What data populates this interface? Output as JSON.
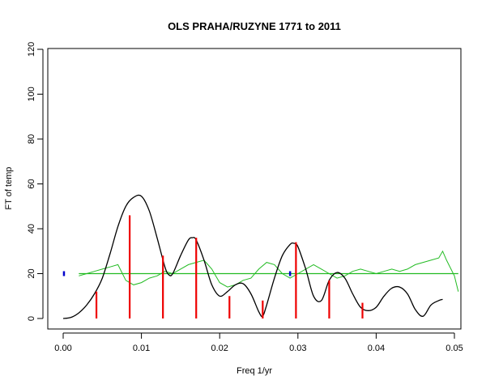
{
  "chart_data": {
    "type": "line",
    "title": "OLS PRAHA/RUZYNE 1771 to 2011",
    "xlabel": "Freq 1/yr",
    "ylabel": "FT of temp",
    "xlim": [
      0,
      0.05
    ],
    "ylim": [
      0,
      120
    ],
    "x_ticks": [
      {
        "value": 0.0,
        "label": "0.00"
      },
      {
        "value": 0.01,
        "label": "0.01"
      },
      {
        "value": 0.02,
        "label": "0.02"
      },
      {
        "value": 0.03,
        "label": "0.03"
      },
      {
        "value": 0.04,
        "label": "0.04"
      },
      {
        "value": 0.05,
        "label": "0.05"
      }
    ],
    "y_ticks": [
      {
        "value": 0,
        "label": "0"
      },
      {
        "value": 20,
        "label": "20"
      },
      {
        "value": 40,
        "label": "40"
      },
      {
        "value": 60,
        "label": "60"
      },
      {
        "value": 80,
        "label": "80"
      },
      {
        "value": 100,
        "label": "100"
      },
      {
        "value": 120,
        "label": "120"
      }
    ],
    "grid": false,
    "colors": {
      "spectrum": "#000000",
      "noise": "#22bb22",
      "threshold": "#22bb22",
      "peaks": "#ee0000",
      "markers": "#0000cc"
    },
    "spectrum": {
      "x": [
        0.0,
        0.001,
        0.002,
        0.003,
        0.004,
        0.005,
        0.006,
        0.007,
        0.008,
        0.009,
        0.01,
        0.011,
        0.012,
        0.013,
        0.0135,
        0.014,
        0.015,
        0.016,
        0.0165,
        0.017,
        0.018,
        0.019,
        0.02,
        0.021,
        0.022,
        0.023,
        0.024,
        0.025,
        0.0255,
        0.026,
        0.027,
        0.028,
        0.029,
        0.0295,
        0.03,
        0.031,
        0.032,
        0.033,
        0.034,
        0.035,
        0.036,
        0.037,
        0.038,
        0.039,
        0.04,
        0.041,
        0.042,
        0.043,
        0.044,
        0.045,
        0.046,
        0.047,
        0.048,
        0.0485
      ],
      "y": [
        0,
        0.5,
        2.5,
        6,
        11,
        18,
        29,
        41,
        50,
        54,
        54.5,
        48,
        36,
        23,
        19.5,
        20,
        28,
        35,
        36,
        35,
        26,
        15,
        10,
        12,
        15,
        15.5,
        11,
        3,
        1,
        6,
        18,
        28,
        33,
        33.5,
        32,
        22,
        10,
        8,
        17,
        20.5,
        18,
        11,
        5,
        3.5,
        5,
        10,
        13.5,
        14,
        11,
        4,
        1,
        6,
        8,
        8.5
      ]
    },
    "noise_level": {
      "x": [
        0.002,
        0.003,
        0.004,
        0.005,
        0.006,
        0.007,
        0.008,
        0.009,
        0.01,
        0.011,
        0.012,
        0.013,
        0.014,
        0.015,
        0.016,
        0.017,
        0.018,
        0.019,
        0.02,
        0.021,
        0.022,
        0.023,
        0.024,
        0.025,
        0.026,
        0.027,
        0.028,
        0.029,
        0.03,
        0.031,
        0.032,
        0.033,
        0.034,
        0.035,
        0.036,
        0.037,
        0.038,
        0.039,
        0.04,
        0.041,
        0.042,
        0.043,
        0.044,
        0.045,
        0.046,
        0.047,
        0.048,
        0.0485,
        0.049,
        0.05,
        0.0505
      ],
      "y": [
        19,
        20,
        21,
        22,
        23,
        24,
        17,
        15,
        16,
        18,
        19,
        21,
        20,
        22,
        24,
        25,
        26,
        22,
        16,
        14,
        15,
        17,
        18,
        22,
        25,
        24,
        20,
        18,
        20,
        22,
        24,
        22,
        20,
        18,
        19,
        21,
        22,
        21,
        20,
        21,
        22,
        21,
        22,
        24,
        25,
        26,
        27,
        30,
        26,
        19,
        12
      ]
    },
    "threshold": {
      "x": [
        0.002,
        0.0505
      ],
      "y": [
        20,
        20
      ]
    },
    "peak_bars": {
      "x": [
        0.00425,
        0.0085,
        0.01275,
        0.017,
        0.02125,
        0.0255,
        0.02975,
        0.034,
        0.03825
      ],
      "y": [
        12,
        46,
        28,
        36,
        10,
        8,
        34,
        17,
        7
      ]
    },
    "markers": {
      "x": [
        0.0001,
        0.029
      ],
      "y": [
        20,
        20
      ]
    }
  }
}
